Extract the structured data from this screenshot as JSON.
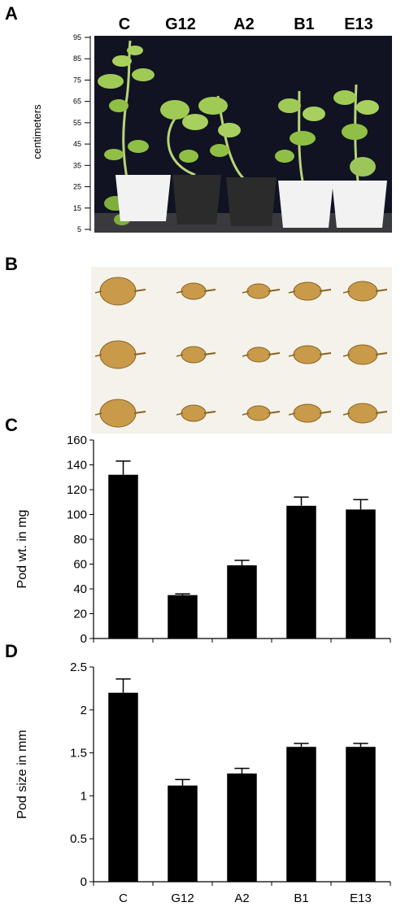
{
  "panels": {
    "a_letter": "A",
    "b_letter": "B",
    "c_letter": "C",
    "d_letter": "D"
  },
  "photo_a": {
    "column_labels": [
      "C",
      "G12",
      "A2",
      "B1",
      "E13"
    ],
    "scale_label": "centimeters",
    "scale_ticks": [
      "95",
      "85",
      "75",
      "65",
      "55",
      "45",
      "35",
      "25",
      "15",
      "5"
    ],
    "colors": {
      "background": "#111322",
      "foliage": "#8fbf45",
      "pot_white": "#f2f2f2",
      "pot_black": "#2b2b2b"
    }
  },
  "photo_b": {
    "rows": 3,
    "columns": 5,
    "colors": {
      "background": "#f4f2ea",
      "pod": "#c99a4a"
    }
  },
  "chart_data": [
    {
      "type": "bar",
      "categories": [
        "C",
        "G12",
        "A2",
        "B1",
        "E13"
      ],
      "values": [
        132,
        35,
        59,
        107,
        104
      ],
      "errors": [
        11,
        1,
        4,
        7,
        8
      ],
      "ylabel": "Pod wt. in mg",
      "ylim": [
        0,
        160
      ],
      "yticks": [
        "0",
        "20",
        "40",
        "60",
        "80",
        "100",
        "120",
        "140",
        "160"
      ],
      "grid": false,
      "bar_color": "#000000"
    },
    {
      "type": "bar",
      "categories": [
        "C",
        "G12",
        "A2",
        "B1",
        "E13"
      ],
      "values": [
        2.2,
        1.12,
        1.26,
        1.57,
        1.57
      ],
      "errors": [
        0.16,
        0.07,
        0.06,
        0.04,
        0.04
      ],
      "ylabel": "Pod size in mm",
      "ylim": [
        0,
        2.5
      ],
      "yticks": [
        "0",
        "0.5",
        "1",
        "1.5",
        "2",
        "2.5"
      ],
      "grid": false,
      "bar_color": "#000000"
    }
  ]
}
